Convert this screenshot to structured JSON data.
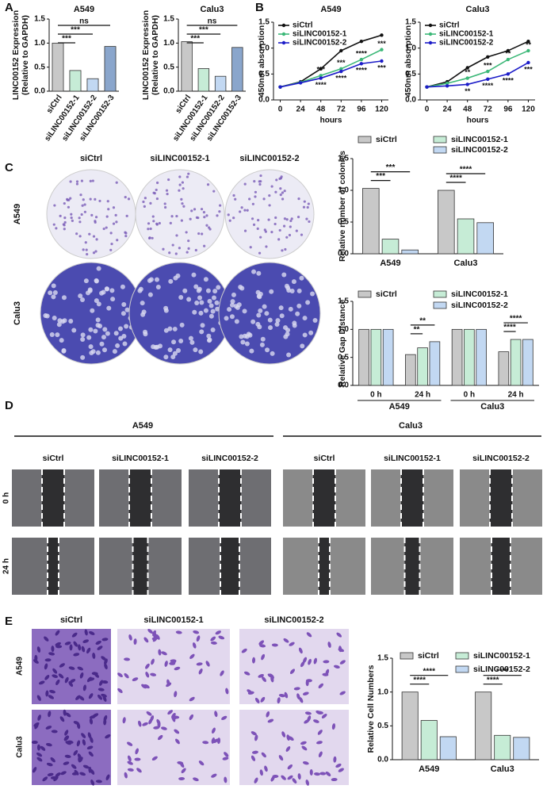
{
  "chart_data": [
    {
      "type": "bar",
      "title": "A549",
      "ylabel": [
        "LINC00152 Expression",
        "(Relative to GAPDH)"
      ],
      "categories": [
        "siCtrl",
        "siLINC00152-1",
        "siLINC00152-2",
        "siLINC00152-3"
      ],
      "values": [
        1.0,
        0.43,
        0.26,
        0.93
      ],
      "colors": [
        "#c8c8c8",
        "#c6ecd6",
        "#c2d8f2",
        "#8aa6cc"
      ],
      "annotations": [
        null,
        "***",
        "***",
        "ns"
      ],
      "ylim": [
        0,
        1.5
      ],
      "yticks": [
        {
          "value": 0,
          "label": "0.0"
        },
        {
          "value": 0.5,
          "label": "0.5"
        },
        {
          "value": 1,
          "label": "1.0"
        },
        {
          "value": 1.5,
          "label": "1.5"
        }
      ]
    },
    {
      "type": "bar",
      "title": "Calu3",
      "ylabel": [
        "LINC00152 Expression",
        "(Relative to GAPDH)"
      ],
      "categories": [
        "siCtrl",
        "siLINC00152-1",
        "siLINC00152-2",
        "siLINC00152-3"
      ],
      "values": [
        1.03,
        0.47,
        0.31,
        0.91
      ],
      "colors": [
        "#c8c8c8",
        "#c6ecd6",
        "#c2d8f2",
        "#8aa6cc"
      ],
      "annotations": [
        null,
        "***",
        "***",
        "ns"
      ],
      "ylim": [
        0,
        1.5
      ],
      "yticks": [
        {
          "value": 0,
          "label": "0.0"
        },
        {
          "value": 0.5,
          "label": "0.5"
        },
        {
          "value": 1,
          "label": "1.0"
        },
        {
          "value": 1.5,
          "label": "1.5"
        }
      ]
    },
    {
      "type": "line",
      "title": "A549",
      "xlabel": "hours",
      "ylabel": "450nm absorption",
      "x": [
        0,
        24,
        48,
        72,
        96,
        120
      ],
      "xlim": [
        -8,
        128
      ],
      "xticks": [
        0,
        24,
        48,
        72,
        96,
        120
      ],
      "ylim": [
        0,
        1.5
      ],
      "yticks": [
        {
          "value": 0,
          "label": "0.0"
        },
        {
          "value": 0.5,
          "label": "0.5"
        },
        {
          "value": 1,
          "label": "1.0"
        },
        {
          "value": 1.5,
          "label": "1.5"
        }
      ],
      "series": [
        {
          "name": "siCtrl",
          "color": "#111111",
          "values": [
            0.25,
            0.35,
            0.6,
            0.95,
            1.13,
            1.25
          ]
        },
        {
          "name": "siLINC00152-1",
          "color": "#3cb878",
          "values": [
            0.25,
            0.34,
            0.47,
            0.6,
            0.78,
            0.97
          ],
          "stars": [
            null,
            null,
            "***",
            "***",
            "****",
            "***"
          ]
        },
        {
          "name": "siLINC00152-2",
          "color": "#1c1cc8",
          "values": [
            0.25,
            0.33,
            0.42,
            0.55,
            0.7,
            0.75
          ],
          "stars": [
            null,
            null,
            "****",
            "****",
            "****",
            "***"
          ]
        }
      ]
    },
    {
      "type": "line",
      "title": "Calu3",
      "xlabel": "hours",
      "ylabel": "450nm absorption",
      "x": [
        0,
        24,
        48,
        72,
        96,
        120
      ],
      "xlim": [
        -8,
        128
      ],
      "xticks": [
        0,
        24,
        48,
        72,
        96,
        120
      ],
      "ylim": [
        0,
        1.5
      ],
      "yticks": [
        {
          "value": 0,
          "label": "0.0"
        },
        {
          "value": 0.5,
          "label": "0.5"
        },
        {
          "value": 1,
          "label": "1.0"
        },
        {
          "value": 1.5,
          "label": "1.5"
        }
      ],
      "series": [
        {
          "name": "siCtrl",
          "color": "#111111",
          "values": [
            0.25,
            0.35,
            0.62,
            0.83,
            0.95,
            1.13
          ]
        },
        {
          "name": "siLINC00152-1",
          "color": "#3cb878",
          "values": [
            0.25,
            0.32,
            0.42,
            0.55,
            0.78,
            0.95
          ],
          "stars": [
            null,
            null,
            "**",
            "***",
            "**",
            "**"
          ]
        },
        {
          "name": "siLINC00152-2",
          "color": "#1c1cc8",
          "values": [
            0.25,
            0.27,
            0.3,
            0.4,
            0.5,
            0.72
          ],
          "stars": [
            null,
            null,
            "**",
            "****",
            "****",
            "***"
          ]
        }
      ]
    },
    {
      "type": "grouped_bar",
      "ylabel": "Relative number of colonies",
      "categories": [
        "A549",
        "Calu3"
      ],
      "series": [
        {
          "name": "siCtrl",
          "color": "#c8c8c8",
          "values": [
            1.03,
            1.0
          ]
        },
        {
          "name": "siLINC00152-1",
          "color": "#c6ecd6",
          "values": [
            0.23,
            0.55
          ]
        },
        {
          "name": "siLINC00152-2",
          "color": "#c2d8f2",
          "values": [
            0.06,
            0.49
          ]
        }
      ],
      "annotations": [
        [
          "***",
          "***"
        ],
        [
          "****",
          "****"
        ]
      ],
      "ylim": [
        0,
        1.5
      ],
      "yticks": [
        {
          "value": 0,
          "label": "0.0"
        },
        {
          "value": 0.5,
          "label": "0.5"
        },
        {
          "value": 1,
          "label": "1.0"
        },
        {
          "value": 1.5,
          "label": "1.5"
        }
      ]
    },
    {
      "type": "grouped_bar",
      "ylabel": "Relative Gap Distance",
      "categories": [
        "0 h",
        "24 h",
        "0 h",
        "24 h"
      ],
      "groups": [
        "A549",
        "Calu3"
      ],
      "series": [
        {
          "name": "siCtrl",
          "color": "#c8c8c8",
          "values": [
            1.0,
            0.55,
            1.0,
            0.6
          ]
        },
        {
          "name": "siLINC00152-1",
          "color": "#c6ecd6",
          "values": [
            1.0,
            0.67,
            1.0,
            0.82
          ]
        },
        {
          "name": "siLINC00152-2",
          "color": "#c2d8f2",
          "values": [
            1.0,
            0.78,
            1.0,
            0.82
          ]
        }
      ],
      "annotations": [
        null,
        [
          "**",
          "**"
        ],
        null,
        [
          "****",
          "****"
        ]
      ],
      "ylim": [
        0,
        1.5
      ],
      "yticks": [
        {
          "value": 0,
          "label": "0.0"
        },
        {
          "value": 0.5,
          "label": "0.5"
        },
        {
          "value": 1,
          "label": "1.0"
        },
        {
          "value": 1.5,
          "label": "1.5"
        }
      ]
    },
    {
      "type": "grouped_bar",
      "ylabel": "Relative Cell Numbers",
      "categories": [
        "A549",
        "Calu3"
      ],
      "series": [
        {
          "name": "siCtrl",
          "color": "#c8c8c8",
          "values": [
            1.0,
            1.0
          ]
        },
        {
          "name": "siLINC00152-1",
          "color": "#c6ecd6",
          "values": [
            0.58,
            0.36
          ]
        },
        {
          "name": "siLINC00152-2",
          "color": "#c2d8f2",
          "values": [
            0.34,
            0.33
          ]
        }
      ],
      "annotations": [
        [
          "****",
          "****"
        ],
        [
          "****",
          "****"
        ]
      ],
      "ylim": [
        0,
        1.5
      ],
      "yticks": [
        {
          "value": 0,
          "label": "0.0"
        },
        {
          "value": 0.5,
          "label": "0.5"
        },
        {
          "value": 1,
          "label": "1.0"
        },
        {
          "value": 1.5,
          "label": "1.5"
        }
      ]
    }
  ],
  "figure": {
    "panels": [
      "A",
      "B",
      "C",
      "D",
      "E"
    ],
    "c": {
      "columns": [
        "siCtrl",
        "siLINC00152-1",
        "siLINC00152-2"
      ],
      "rows": [
        "A549",
        "Calu3"
      ]
    },
    "d": {
      "groups": [
        "A549",
        "Calu3"
      ],
      "columns": [
        "siCtrl",
        "siLINC00152-1",
        "siLINC00152-2",
        "siCtrl",
        "siLINC00152-1",
        "siLINC00152-2"
      ],
      "rows": [
        "0 h",
        "24 h"
      ]
    },
    "e": {
      "columns": [
        "siCtrl",
        "siLINC00152-1",
        "siLINC00152-2"
      ],
      "rows": [
        "A549",
        "Calu3"
      ]
    }
  }
}
